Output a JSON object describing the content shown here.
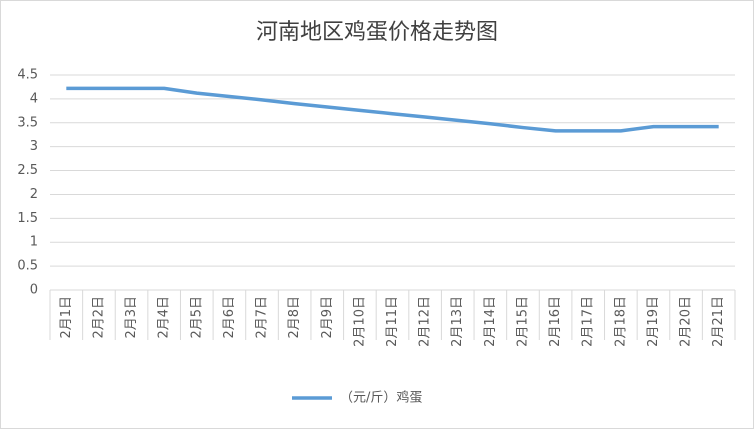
{
  "chart_data": {
    "type": "line",
    "title": "河南地区鸡蛋价格走势图",
    "categories": [
      "2月1日",
      "2月2日",
      "2月3日",
      "2月4日",
      "2月5日",
      "2月6日",
      "2月7日",
      "2月8日",
      "2月9日",
      "2月10日",
      "2月11日",
      "2月12日",
      "2月13日",
      "2月14日",
      "2月15日",
      "2月16日",
      "2月17日",
      "2月18日",
      "2月19日",
      "2月20日",
      "2月21日"
    ],
    "series": [
      {
        "name": "（元/斤）鸡蛋",
        "color": "#5b9bd5",
        "values": [
          4.22,
          4.22,
          4.22,
          4.22,
          4.12,
          4.05,
          3.98,
          3.9,
          3.83,
          3.76,
          3.69,
          3.62,
          3.55,
          3.48,
          3.4,
          3.33,
          3.33,
          3.33,
          3.42,
          3.42,
          3.42
        ]
      }
    ],
    "ylim": [
      0,
      4.5
    ],
    "yticks": [
      0,
      0.5,
      1,
      1.5,
      2,
      2.5,
      3,
      3.5,
      4,
      4.5
    ],
    "grid": true,
    "legend": "bottom"
  }
}
